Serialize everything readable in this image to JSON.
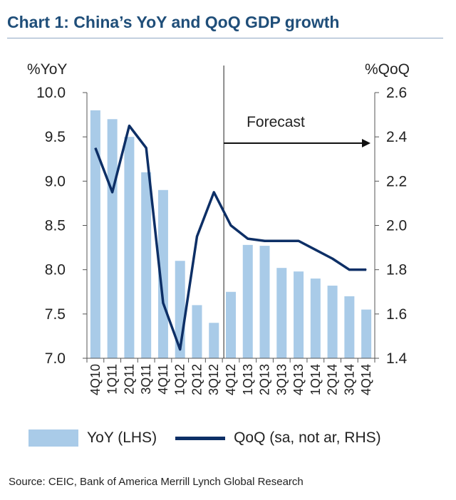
{
  "title": "Chart 1: China’s YoY and QoQ GDP growth",
  "source": "Source: CEIC, Bank of America Merrill Lynch Global Research",
  "colors": {
    "bar": "#a9cbe8",
    "line": "#0d2f66",
    "title": "#1f4e79"
  },
  "chart_data": {
    "type": "bar",
    "categories": [
      "4Q10",
      "1Q11",
      "2Q11",
      "3Q11",
      "4Q11",
      "1Q12",
      "2Q12",
      "3Q12",
      "4Q12",
      "1Q13",
      "2Q13",
      "3Q13",
      "4Q13",
      "1Q14",
      "2Q14",
      "3Q14",
      "4Q14"
    ],
    "category_labels": [
      "4Q10",
      "1Q11",
      "2Q11",
      "3Q11",
      "4Q11",
      "1Q12",
      "2Q12",
      "3Q12",
      "4Q12",
      "1Q13",
      "2Q13",
      "3Q13",
      "4Q13",
      "1Q14",
      "2Q14",
      "3Q14",
      "4Q14"
    ],
    "series": [
      {
        "name": "YoY (LHS)",
        "type": "bar",
        "axis": "left",
        "values": [
          9.8,
          9.7,
          9.5,
          9.1,
          8.9,
          8.1,
          7.6,
          7.4,
          7.75,
          8.28,
          8.27,
          8.02,
          7.98,
          7.9,
          7.82,
          7.7,
          7.55
        ]
      },
      {
        "name": "QoQ (sa, not ar, RHS)",
        "type": "line",
        "axis": "right",
        "values": [
          2.35,
          2.15,
          2.45,
          2.35,
          1.65,
          1.44,
          1.95,
          2.15,
          2.0,
          1.94,
          1.93,
          1.93,
          1.93,
          1.89,
          1.85,
          1.8,
          1.8
        ]
      }
    ],
    "ylabel_left": "%YoY",
    "ylabel_right": "%QoQ",
    "ylim_left": [
      7.0,
      10.0
    ],
    "ylim_right": [
      1.4,
      2.6
    ],
    "yticks_left": [
      "10.0",
      "9.5",
      "9.0",
      "8.5",
      "8.0",
      "7.5",
      "7.0"
    ],
    "yticks_right": [
      "2.6",
      "2.4",
      "2.2",
      "2.0",
      "1.8",
      "1.6",
      "1.4"
    ],
    "annotation": {
      "text": "Forecast",
      "starts_at": "4Q12"
    },
    "legend": [
      "YoY (LHS)",
      "QoQ (sa, not ar, RHS)"
    ],
    "legend_position": "bottom"
  }
}
